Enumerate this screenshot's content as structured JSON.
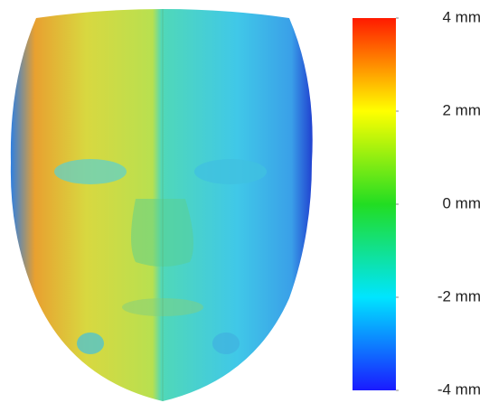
{
  "colorbar": {
    "range": [
      -4,
      4
    ],
    "colors": [
      "#1a1aff",
      "#00e5ff",
      "#22dd22",
      "#ffff00",
      "#ff1a00"
    ],
    "ticks": [
      {
        "value": 4,
        "label": "4 mm"
      },
      {
        "value": 2,
        "label": "2 mm"
      },
      {
        "value": 0,
        "label": "0 mm"
      },
      {
        "value": -2,
        "label": "-2 mm"
      },
      {
        "value": -4,
        "label": "-4 mm"
      }
    ]
  }
}
